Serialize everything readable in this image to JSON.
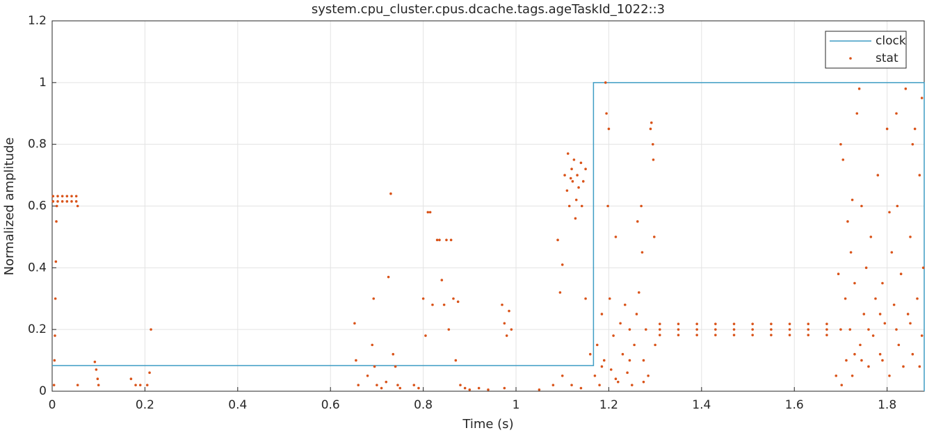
{
  "chart_data": {
    "type": "scatter",
    "title": "system.cpu_cluster.cpus.dcache.tags.ageTaskId_1022::3",
    "xlabel": "Time (s)",
    "ylabel": "Normalized amplitude",
    "xlim": [
      0,
      1.88
    ],
    "ylim": [
      0,
      1.2
    ],
    "xticks": [
      0,
      0.2,
      0.4,
      0.6,
      0.8,
      1,
      1.2,
      1.4,
      1.6,
      1.8
    ],
    "yticks": [
      0,
      0.2,
      0.4,
      0.6,
      0.8,
      1,
      1.2
    ],
    "grid": true,
    "legend": "northeast",
    "series": [
      {
        "name": "clock",
        "mode": "line",
        "color": "#3d9cc4",
        "x": [
          0,
          1.167,
          1.167,
          1.88,
          1.88
        ],
        "values": [
          0.083,
          0.083,
          1,
          1,
          0
        ]
      },
      {
        "name": "stat",
        "mode": "markers",
        "color": "#d95319",
        "x": [
          0.002,
          0.012,
          0.022,
          0.032,
          0.042,
          0.052,
          0.002,
          0.012,
          0.022,
          0.032,
          0.042,
          0.052,
          0.004,
          0.005,
          0.006,
          0.007,
          0.008,
          0.009,
          0.01,
          0.055,
          0.055,
          0.092,
          0.095,
          0.098,
          0.1,
          0.17,
          0.18,
          0.19,
          0.205,
          0.21,
          0.213,
          0.652,
          0.655,
          0.66,
          0.68,
          0.69,
          0.693,
          0.695,
          0.7,
          0.71,
          0.72,
          0.725,
          0.73,
          0.735,
          0.74,
          0.745,
          0.75,
          0.78,
          0.79,
          0.8,
          0.805,
          0.81,
          0.815,
          0.82,
          0.83,
          0.835,
          0.84,
          0.845,
          0.85,
          0.855,
          0.86,
          0.865,
          0.87,
          0.875,
          0.88,
          0.89,
          0.9,
          0.92,
          0.94,
          0.97,
          0.975,
          0.98,
          0.985,
          0.99,
          0.975,
          1.05,
          1.08,
          1.09,
          1.095,
          1.1,
          1.105,
          1.11,
          1.112,
          1.115,
          1.12,
          1.122,
          1.125,
          1.13,
          1.132,
          1.135,
          1.14,
          1.142,
          1.145,
          1.15,
          1.128,
          1.118,
          1.1,
          1.12,
          1.14,
          1.15,
          1.16,
          1.17,
          1.175,
          1.18,
          1.185,
          1.19,
          1.193,
          1.195,
          1.198,
          1.2,
          1.202,
          1.205,
          1.21,
          1.215,
          1.22,
          1.225,
          1.23,
          1.235,
          1.24,
          1.245,
          1.25,
          1.255,
          1.26,
          1.262,
          1.265,
          1.27,
          1.272,
          1.275,
          1.28,
          1.285,
          1.29,
          1.292,
          1.295,
          1.296,
          1.298,
          1.3,
          1.185,
          1.215,
          1.245,
          1.275,
          1.31,
          1.35,
          1.39,
          1.43,
          1.47,
          1.51,
          1.55,
          1.59,
          1.63,
          1.67,
          1.31,
          1.35,
          1.39,
          1.43,
          1.47,
          1.51,
          1.55,
          1.59,
          1.63,
          1.67,
          1.31,
          1.35,
          1.39,
          1.43,
          1.47,
          1.51,
          1.55,
          1.59,
          1.63,
          1.67,
          1.7,
          1.702,
          1.705,
          1.71,
          1.712,
          1.715,
          1.72,
          1.722,
          1.725,
          1.73,
          1.735,
          1.74,
          1.742,
          1.745,
          1.75,
          1.755,
          1.76,
          1.765,
          1.77,
          1.775,
          1.78,
          1.785,
          1.79,
          1.795,
          1.8,
          1.805,
          1.81,
          1.815,
          1.82,
          1.822,
          1.825,
          1.83,
          1.835,
          1.84,
          1.845,
          1.85,
          1.855,
          1.86,
          1.865,
          1.87,
          1.875,
          1.878,
          1.69,
          1.7,
          1.73,
          1.76,
          1.79,
          1.82,
          1.85,
          1.87,
          1.695,
          1.725,
          1.805,
          1.855,
          1.875,
          1.745,
          1.785
        ],
        "values": [
          0.615,
          0.615,
          0.615,
          0.615,
          0.615,
          0.615,
          0.632,
          0.632,
          0.632,
          0.632,
          0.632,
          0.632,
          0.02,
          0.1,
          0.18,
          0.3,
          0.42,
          0.55,
          0.6,
          0.02,
          0.6,
          0.095,
          0.07,
          0.04,
          0.02,
          0.04,
          0.02,
          0.02,
          0.02,
          0.06,
          0.2,
          0.22,
          0.1,
          0.02,
          0.05,
          0.15,
          0.3,
          0.08,
          0.02,
          0.01,
          0.03,
          0.37,
          0.64,
          0.12,
          0.08,
          0.02,
          0.01,
          0.02,
          0.01,
          0.3,
          0.18,
          0.58,
          0.58,
          0.28,
          0.49,
          0.49,
          0.36,
          0.28,
          0.49,
          0.2,
          0.49,
          0.3,
          0.1,
          0.29,
          0.02,
          0.01,
          0.005,
          0.01,
          0.005,
          0.28,
          0.22,
          0.18,
          0.26,
          0.2,
          0.01,
          0.005,
          0.02,
          0.49,
          0.32,
          0.41,
          0.7,
          0.65,
          0.77,
          0.6,
          0.72,
          0.68,
          0.75,
          0.62,
          0.7,
          0.66,
          0.74,
          0.6,
          0.68,
          0.72,
          0.56,
          0.69,
          0.05,
          0.02,
          0.01,
          0.3,
          0.12,
          0.05,
          0.15,
          0.02,
          0.25,
          0.1,
          1,
          0.9,
          0.6,
          0.85,
          0.3,
          0.07,
          0.18,
          0.5,
          0.03,
          0.22,
          0.12,
          0.28,
          0.06,
          0.2,
          0.02,
          0.15,
          0.25,
          0.55,
          0.32,
          0.6,
          0.45,
          0.1,
          0.2,
          0.05,
          0.85,
          0.87,
          0.8,
          0.75,
          0.5,
          0.15,
          0.08,
          0.04,
          0.1,
          0.03,
          0.182,
          0.182,
          0.182,
          0.182,
          0.182,
          0.182,
          0.182,
          0.182,
          0.182,
          0.182,
          0.2,
          0.2,
          0.2,
          0.2,
          0.2,
          0.2,
          0.2,
          0.2,
          0.2,
          0.2,
          0.218,
          0.218,
          0.218,
          0.218,
          0.218,
          0.218,
          0.218,
          0.218,
          0.218,
          0.218,
          0.8,
          0.02,
          0.75,
          0.3,
          0.1,
          0.55,
          0.2,
          0.45,
          0.05,
          0.35,
          0.9,
          0.98,
          0.15,
          0.6,
          0.25,
          0.4,
          0.08,
          0.5,
          0.18,
          0.3,
          0.7,
          0.12,
          0.35,
          0.22,
          0.85,
          0.05,
          0.45,
          0.28,
          0.9,
          0.6,
          0.15,
          0.38,
          0.08,
          0.98,
          0.25,
          0.5,
          0.12,
          0.85,
          0.3,
          0.7,
          0.18,
          0.4,
          0.05,
          0.2,
          0.12,
          0.2,
          0.1,
          0.2,
          0.22,
          0.08,
          0.38,
          0.62,
          0.58,
          0.8,
          0.95,
          0.1,
          0.25
        ]
      }
    ]
  }
}
